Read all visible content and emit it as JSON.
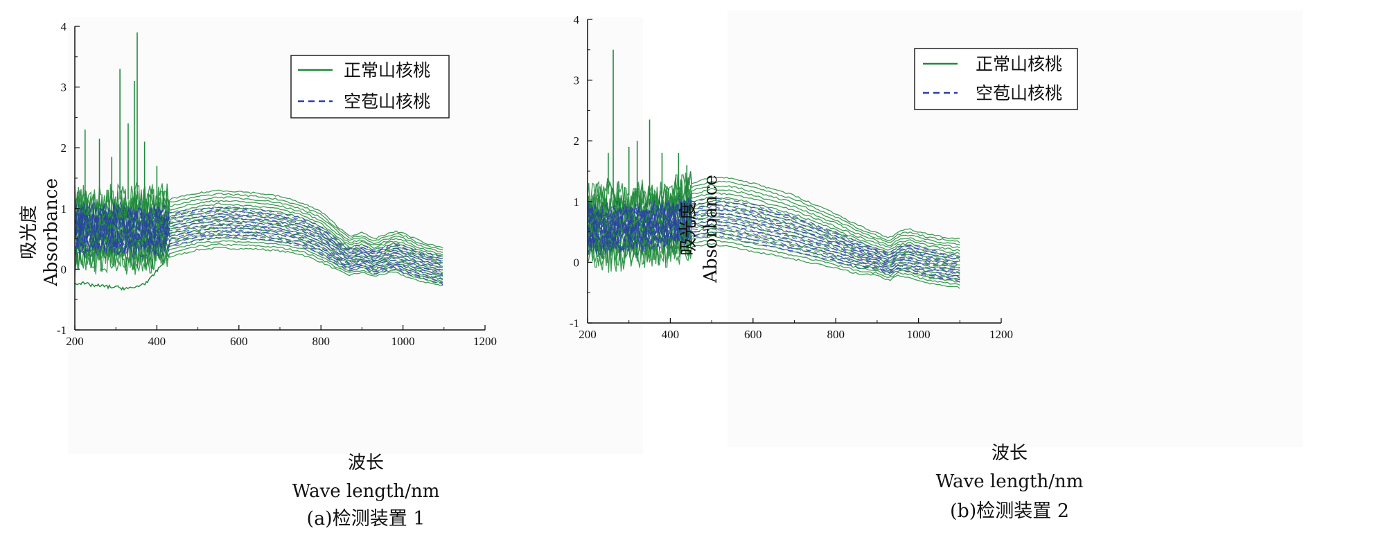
{
  "chart_data": [
    {
      "type": "line",
      "caption": "(a)检测装置 1",
      "xlabel_cn": "波长",
      "xlabel_en": "Wave length/nm",
      "ylabel_cn": "吸光度",
      "ylabel_en": "Absorbance",
      "xlim": [
        200,
        1200
      ],
      "ylim": [
        -1,
        4
      ],
      "xticks": [
        200,
        400,
        600,
        800,
        1000,
        1200
      ],
      "yticks": [
        -1,
        0,
        1,
        2,
        3,
        4
      ],
      "legend_position": "top-center",
      "grid": false,
      "series": [
        {
          "name": "正常山核桃",
          "color": "#1e8a3a",
          "line_style": "solid",
          "x": [
            200,
            250,
            300,
            350,
            420,
            430,
            500,
            550,
            600,
            650,
            700,
            750,
            800,
            850,
            870,
            900,
            930,
            950,
            980,
            1000,
            1030,
            1060,
            1100
          ],
          "y_low": [
            0.15,
            0.16,
            0.16,
            0.15,
            0.15,
            0.2,
            0.32,
            0.35,
            0.34,
            0.33,
            0.3,
            0.25,
            0.12,
            -0.05,
            -0.1,
            -0.05,
            -0.12,
            -0.08,
            -0.05,
            -0.1,
            -0.18,
            -0.22,
            -0.28
          ],
          "y_high": [
            1.15,
            1.15,
            1.15,
            1.15,
            1.15,
            1.15,
            1.25,
            1.3,
            1.28,
            1.25,
            1.2,
            1.1,
            0.95,
            0.65,
            0.55,
            0.6,
            0.5,
            0.55,
            0.62,
            0.6,
            0.5,
            0.42,
            0.35
          ],
          "low_anomaly": {
            "x": [
              200,
              250,
              300,
              340,
              380,
              420
            ],
            "y": [
              -0.22,
              -0.27,
              -0.3,
              -0.32,
              -0.2,
              0.15
            ]
          },
          "spikes": [
            {
              "x": 225,
              "y": 2.3
            },
            {
              "x": 260,
              "y": 2.15
            },
            {
              "x": 290,
              "y": 1.85
            },
            {
              "x": 310,
              "y": 3.3
            },
            {
              "x": 330,
              "y": 2.4
            },
            {
              "x": 352,
              "y": 3.9
            },
            {
              "x": 345,
              "y": 3.1
            },
            {
              "x": 370,
              "y": 2.1
            },
            {
              "x": 400,
              "y": 1.7
            }
          ]
        },
        {
          "name": "空苞山核桃",
          "color": "#2b3fa8",
          "line_style": "dashed",
          "x": [
            200,
            250,
            300,
            350,
            420,
            430,
            500,
            550,
            600,
            650,
            700,
            750,
            800,
            850,
            870,
            900,
            930,
            950,
            980,
            1000,
            1030,
            1060,
            1100
          ],
          "y_low": [
            0.35,
            0.35,
            0.35,
            0.35,
            0.35,
            0.38,
            0.48,
            0.52,
            0.52,
            0.5,
            0.45,
            0.38,
            0.25,
            0.05,
            -0.02,
            0.03,
            -0.08,
            -0.05,
            0.0,
            -0.05,
            -0.12,
            -0.17,
            -0.25
          ],
          "y_high": [
            0.95,
            0.95,
            0.95,
            0.95,
            0.95,
            0.92,
            0.98,
            1.02,
            1.02,
            0.98,
            0.92,
            0.85,
            0.7,
            0.42,
            0.35,
            0.4,
            0.3,
            0.35,
            0.42,
            0.4,
            0.32,
            0.25,
            0.2
          ]
        }
      ]
    },
    {
      "type": "line",
      "caption": "(b)检测装置 2",
      "xlabel_cn": "波长",
      "xlabel_en": "Wave length/nm",
      "ylabel_cn": "吸光度",
      "ylabel_en": "Absorbance",
      "xlim": [
        200,
        1200
      ],
      "ylim": [
        -1,
        4
      ],
      "xticks": [
        200,
        400,
        600,
        800,
        1000,
        1200
      ],
      "yticks": [
        -1,
        0,
        1,
        2,
        3,
        4
      ],
      "legend_position": "top-center",
      "grid": false,
      "series": [
        {
          "name": "正常山核桃",
          "color": "#1e8a3a",
          "line_style": "solid",
          "x": [
            200,
            250,
            300,
            350,
            400,
            450,
            500,
            550,
            600,
            650,
            700,
            750,
            800,
            850,
            900,
            930,
            950,
            980,
            1000,
            1030,
            1060,
            1100
          ],
          "y_low": [
            0.1,
            0.1,
            0.12,
            0.15,
            0.18,
            0.25,
            0.3,
            0.25,
            0.18,
            0.12,
            0.05,
            -0.02,
            -0.1,
            -0.18,
            -0.22,
            -0.3,
            -0.22,
            -0.25,
            -0.3,
            -0.35,
            -0.38,
            -0.42
          ],
          "y_high": [
            1.1,
            1.12,
            1.1,
            1.1,
            1.15,
            1.3,
            1.4,
            1.38,
            1.3,
            1.2,
            1.1,
            0.95,
            0.8,
            0.62,
            0.48,
            0.4,
            0.5,
            0.55,
            0.5,
            0.45,
            0.42,
            0.38
          ],
          "spikes": [
            {
              "x": 262,
              "y": 3.5
            },
            {
              "x": 250,
              "y": 1.8
            },
            {
              "x": 300,
              "y": 1.9
            },
            {
              "x": 320,
              "y": 2.0
            },
            {
              "x": 350,
              "y": 2.35
            },
            {
              "x": 380,
              "y": 1.8
            },
            {
              "x": 420,
              "y": 1.8
            },
            {
              "x": 440,
              "y": 1.6
            }
          ]
        },
        {
          "name": "空苞山核桃",
          "color": "#2b3fa8",
          "line_style": "dashed",
          "x": [
            200,
            250,
            300,
            350,
            400,
            450,
            500,
            550,
            600,
            650,
            700,
            750,
            800,
            850,
            900,
            930,
            950,
            980,
            1000,
            1030,
            1060,
            1100
          ],
          "y_low": [
            0.25,
            0.25,
            0.27,
            0.3,
            0.35,
            0.4,
            0.45,
            0.4,
            0.32,
            0.25,
            0.18,
            0.1,
            0.02,
            -0.08,
            -0.12,
            -0.2,
            -0.12,
            -0.15,
            -0.2,
            -0.25,
            -0.28,
            -0.32
          ],
          "y_high": [
            0.85,
            0.85,
            0.85,
            0.88,
            0.92,
            1.0,
            1.05,
            1.02,
            0.95,
            0.85,
            0.75,
            0.62,
            0.5,
            0.35,
            0.22,
            0.15,
            0.25,
            0.3,
            0.25,
            0.2,
            0.15,
            0.1
          ]
        }
      ]
    }
  ]
}
